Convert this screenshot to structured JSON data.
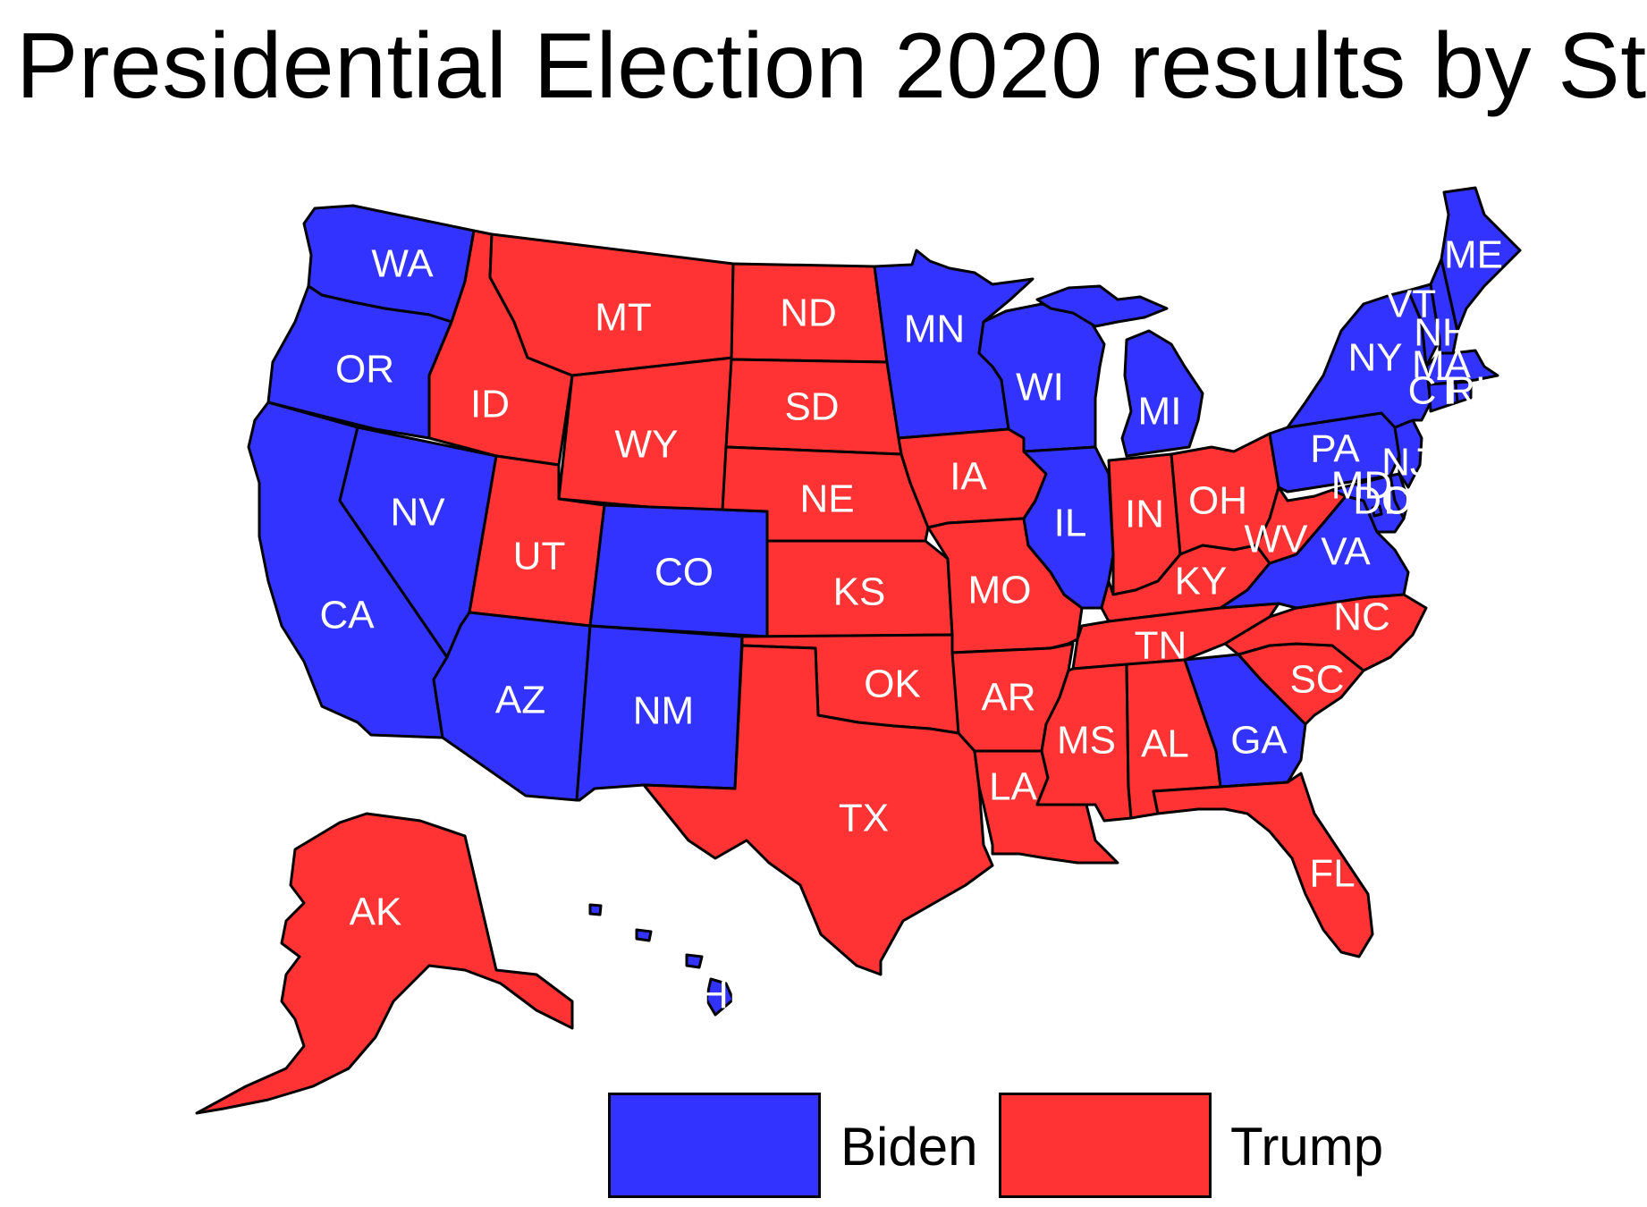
{
  "title": "Presidential Election 2020 results by St",
  "colors": {
    "Biden": "#3333ff",
    "Trump": "#ff3333",
    "stroke": "#000000"
  },
  "legend": [
    {
      "label": "Biden",
      "color": "#3333ff"
    },
    {
      "label": "Trump",
      "color": "#ff3333"
    }
  ],
  "states": {
    "WA": "Biden",
    "OR": "Biden",
    "CA": "Biden",
    "NV": "Biden",
    "ID": "Trump",
    "MT": "Trump",
    "WY": "Trump",
    "UT": "Trump",
    "AZ": "Biden",
    "CO": "Biden",
    "NM": "Biden",
    "ND": "Trump",
    "SD": "Trump",
    "NE": "Trump",
    "KS": "Trump",
    "OK": "Trump",
    "TX": "Trump",
    "MN": "Biden",
    "IA": "Trump",
    "MO": "Trump",
    "AR": "Trump",
    "LA": "Trump",
    "WI": "Biden",
    "IL": "Biden",
    "MI": "Biden",
    "IN": "Trump",
    "OH": "Trump",
    "KY": "Trump",
    "TN": "Trump",
    "MS": "Trump",
    "AL": "Trump",
    "GA": "Biden",
    "FL": "Trump",
    "SC": "Trump",
    "NC": "Trump",
    "VA": "Biden",
    "WV": "Trump",
    "PA": "Biden",
    "NY": "Biden",
    "VT": "Biden",
    "NH": "Biden",
    "ME": "Biden",
    "MA": "Biden",
    "CT": "Biden",
    "RI": "Biden",
    "NJ": "Biden",
    "DE": "Biden",
    "MD": "Biden",
    "DC": "Biden",
    "AK": "Trump",
    "HI": "Biden"
  },
  "labels": {
    "WA": "WA",
    "OR": "OR",
    "CA": "CA",
    "NV": "NV",
    "ID": "ID",
    "MT": "MT",
    "WY": "WY",
    "UT": "UT",
    "AZ": "AZ",
    "CO": "CO",
    "NM": "NM",
    "ND": "ND",
    "SD": "SD",
    "NE": "NE",
    "KS": "KS",
    "OK": "OK",
    "TX": "TX",
    "MN": "MN",
    "IA": "IA",
    "MO": "MO",
    "AR": "AR",
    "LA": "LA",
    "WI": "WI",
    "IL": "IL",
    "MI": "MI",
    "IN": "IN",
    "OH": "OH",
    "KY": "KY",
    "TN": "TN",
    "MS": "MS",
    "AL": "AL",
    "GA": "GA",
    "FL": "FL",
    "SC": "SC",
    "NC": "NC",
    "VA": "VA",
    "WV": "WV",
    "PA": "PA",
    "NY": "NY",
    "VT": "VT",
    "NH": "NH",
    "ME": "ME",
    "MA": "MA",
    "CT": "CT",
    "RI": "RI",
    "NJ": "NJ",
    "DE": "DE",
    "MD": "MD",
    "DC": "DC",
    "AK": "AK",
    "HI": "HI"
  }
}
